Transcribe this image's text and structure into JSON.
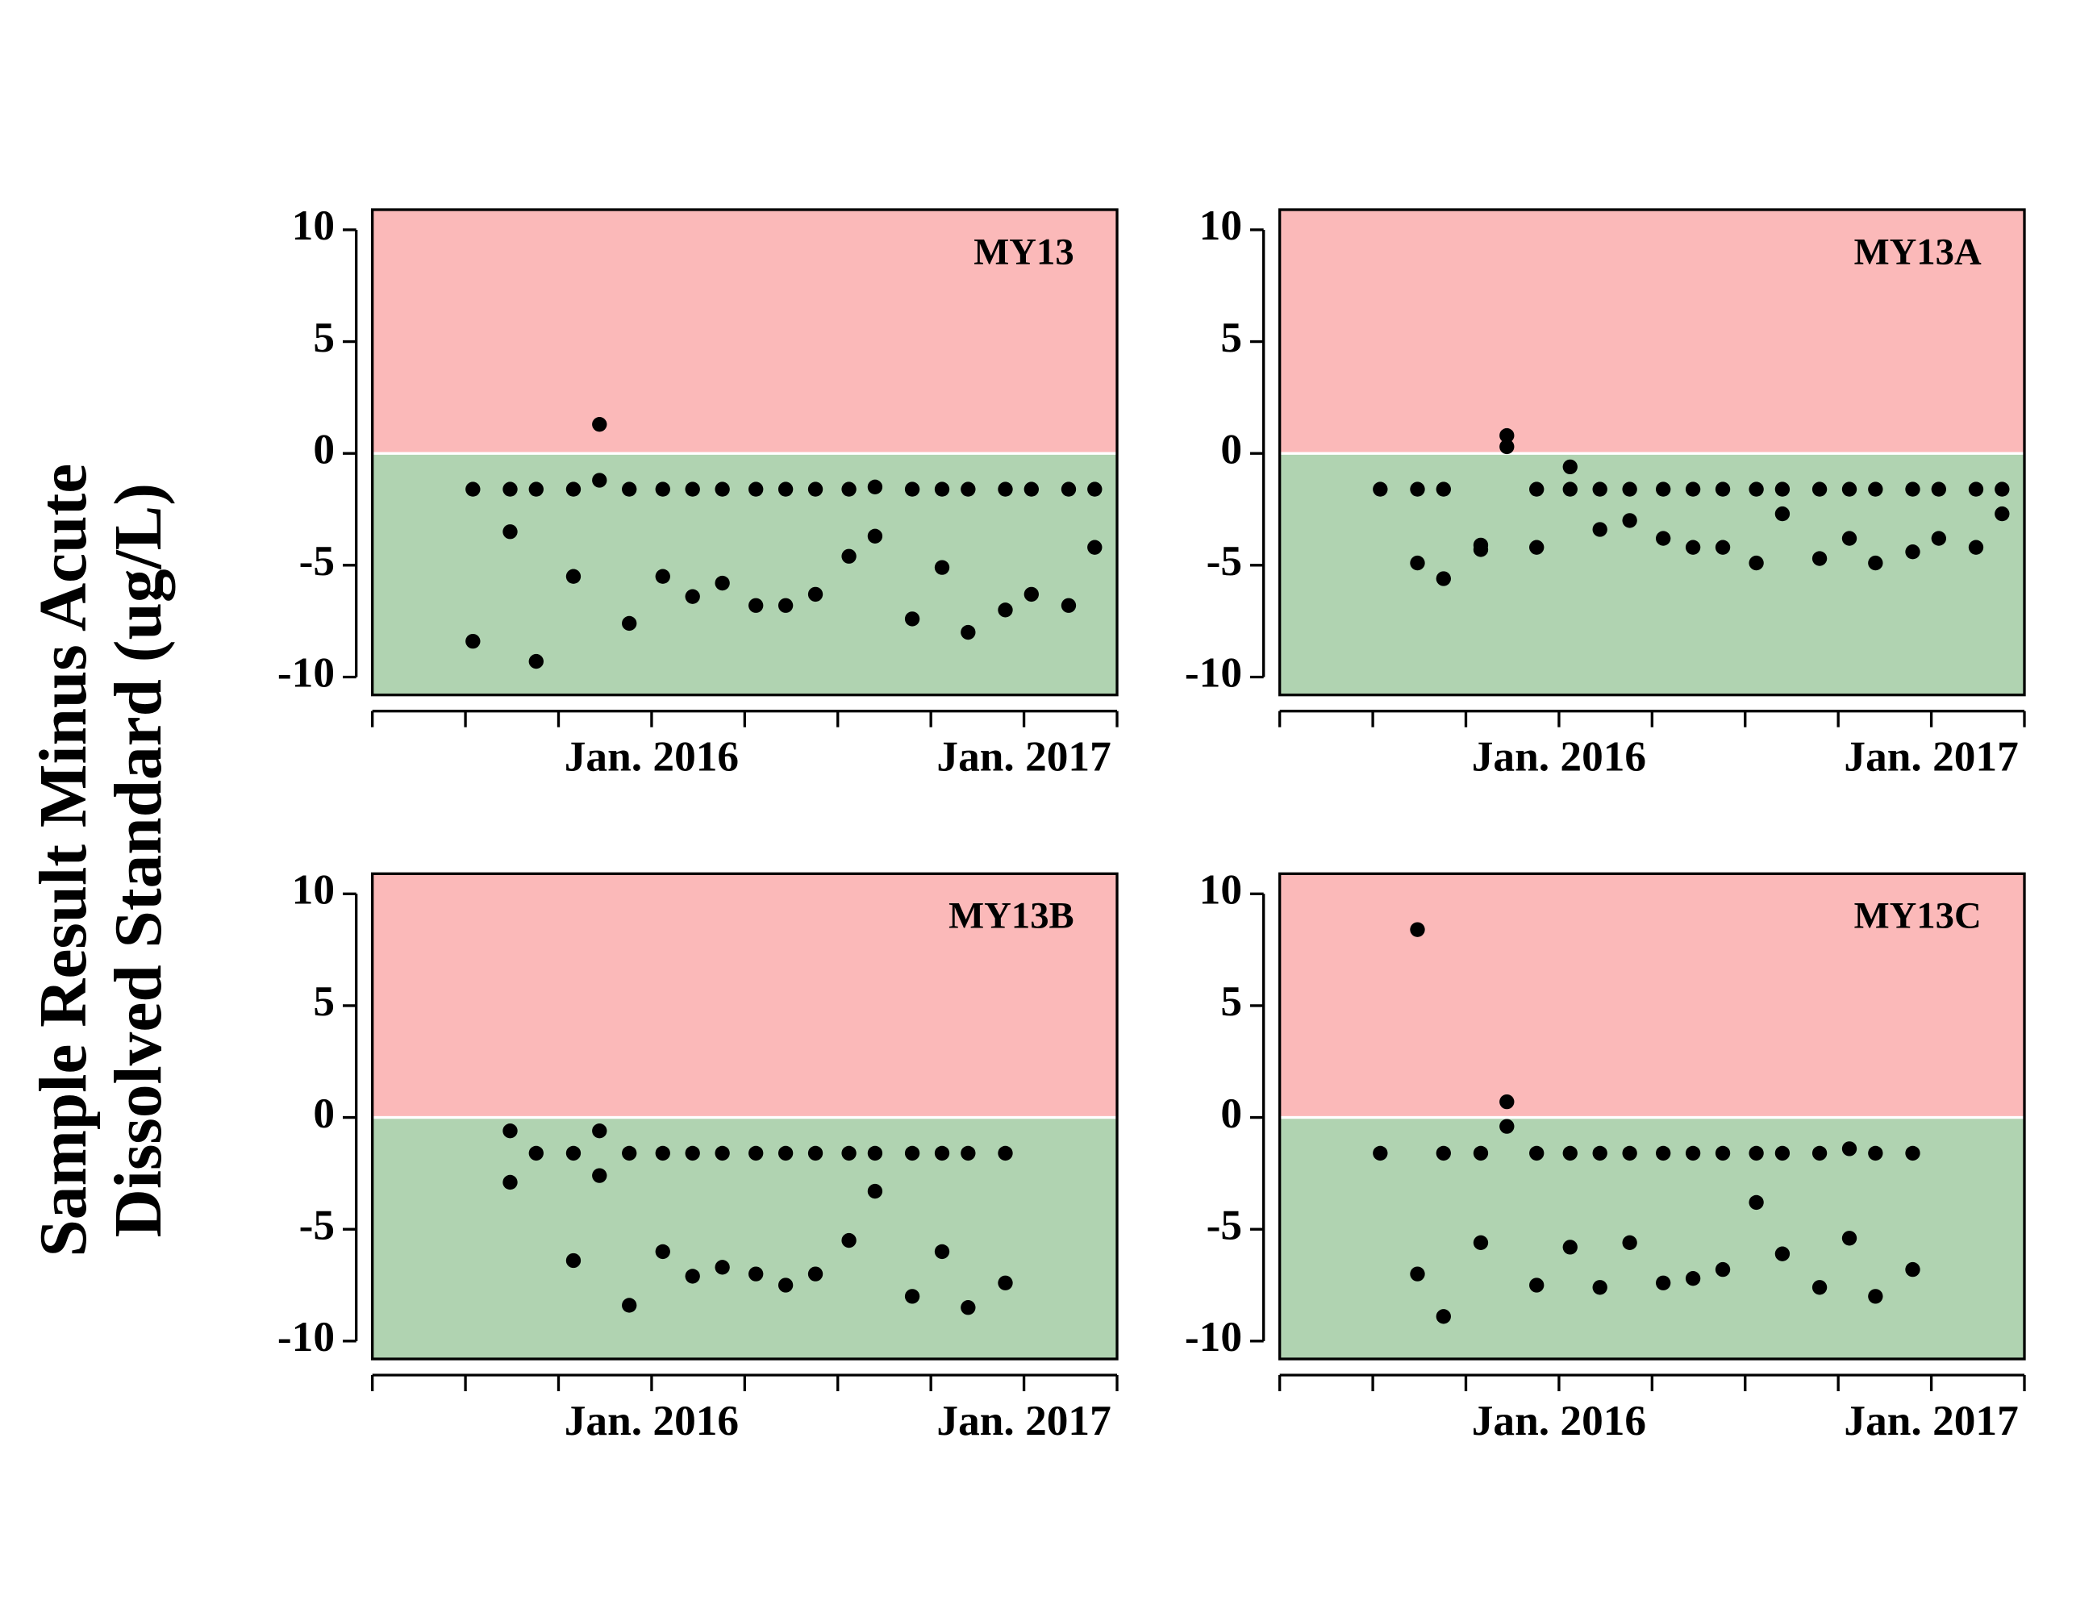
{
  "ylabel": [
    "Sample Result Minus Acute",
    "Dissolved Standard (ug/L)"
  ],
  "chart_data": [
    {
      "type": "scatter",
      "title": "MY13",
      "point_color": "#000000",
      "background": {
        "above": "#fbb9b9",
        "below": "#b0d3b1",
        "threshold": 0
      },
      "xlim": [
        2015.25,
        2017.25
      ],
      "ylim": [
        -10.8,
        10.9
      ],
      "xticks": [
        {
          "value": 2015.25,
          "label": null
        },
        {
          "value": 2015.5,
          "label": null
        },
        {
          "value": 2015.75,
          "label": null
        },
        {
          "value": 2016,
          "label": "Jan. 2016"
        },
        {
          "value": 2016.25,
          "label": null
        },
        {
          "value": 2016.5,
          "label": null
        },
        {
          "value": 2016.75,
          "label": null
        },
        {
          "value": 2017,
          "label": "Jan. 2017"
        },
        {
          "value": 2017.25,
          "label": null
        }
      ],
      "yticks": [
        -10,
        -5,
        0,
        5,
        10
      ],
      "x": [
        2015.52,
        2015.52,
        2015.62,
        2015.62,
        2015.69,
        2015.69,
        2015.79,
        2015.79,
        2015.86,
        2015.86,
        2015.94,
        2015.94,
        2016.03,
        2016.03,
        2016.11,
        2016.11,
        2016.19,
        2016.19,
        2016.28,
        2016.28,
        2016.36,
        2016.36,
        2016.44,
        2016.44,
        2016.53,
        2016.53,
        2016.6,
        2016.6,
        2016.7,
        2016.7,
        2016.78,
        2016.78,
        2016.85,
        2016.85,
        2016.95,
        2016.95,
        2017.02,
        2017.02,
        2017.12,
        2017.12,
        2017.19,
        2017.19
      ],
      "values": [
        -1.6,
        -8.4,
        -1.6,
        -3.5,
        -1.6,
        -9.3,
        -1.6,
        -5.5,
        1.3,
        -1.2,
        -1.6,
        -7.6,
        -1.6,
        -5.5,
        -1.6,
        -6.4,
        -1.6,
        -5.8,
        -1.6,
        -6.8,
        -1.6,
        -6.8,
        -1.6,
        -6.3,
        -1.6,
        -4.6,
        -1.5,
        -3.7,
        -1.6,
        -7.4,
        -1.6,
        -5.1,
        -1.6,
        -8.0,
        -1.6,
        -7.0,
        -1.6,
        -6.3,
        -1.6,
        -6.8,
        -1.6,
        -4.2
      ]
    },
    {
      "type": "scatter",
      "title": "MY13A",
      "point_color": "#000000",
      "background": {
        "above": "#fbb9b9",
        "below": "#b0d3b1",
        "threshold": 0
      },
      "xlim": [
        2015.25,
        2017.25
      ],
      "ylim": [
        -10.8,
        10.9
      ],
      "xticks": [
        {
          "value": 2015.25,
          "label": null
        },
        {
          "value": 2015.5,
          "label": null
        },
        {
          "value": 2015.75,
          "label": null
        },
        {
          "value": 2016,
          "label": "Jan. 2016"
        },
        {
          "value": 2016.25,
          "label": null
        },
        {
          "value": 2016.5,
          "label": null
        },
        {
          "value": 2016.75,
          "label": null
        },
        {
          "value": 2017,
          "label": "Jan. 2017"
        },
        {
          "value": 2017.25,
          "label": null
        }
      ],
      "yticks": [
        -10,
        -5,
        0,
        5,
        10
      ],
      "x": [
        2015.52,
        2015.62,
        2015.62,
        2015.69,
        2015.69,
        2015.79,
        2015.79,
        2015.86,
        2015.86,
        2015.94,
        2015.94,
        2016.03,
        2016.03,
        2016.11,
        2016.11,
        2016.19,
        2016.19,
        2016.28,
        2016.28,
        2016.36,
        2016.36,
        2016.44,
        2016.44,
        2016.53,
        2016.53,
        2016.6,
        2016.6,
        2016.7,
        2016.7,
        2016.78,
        2016.78,
        2016.85,
        2016.85,
        2016.95,
        2016.95,
        2017.02,
        2017.02,
        2017.12,
        2017.12,
        2017.19,
        2017.19
      ],
      "values": [
        -1.6,
        -1.6,
        -4.9,
        -1.6,
        -5.6,
        -4.1,
        -4.3,
        0.8,
        0.3,
        -1.6,
        -4.2,
        -0.6,
        -1.6,
        -1.6,
        -3.4,
        -1.6,
        -3.0,
        -1.6,
        -3.8,
        -1.6,
        -4.2,
        -1.6,
        -4.2,
        -1.6,
        -4.9,
        -1.6,
        -2.7,
        -1.6,
        -4.7,
        -1.6,
        -3.8,
        -1.6,
        -4.9,
        -1.6,
        -4.4,
        -1.6,
        -3.8,
        -1.6,
        -4.2,
        -1.6,
        -2.7
      ]
    },
    {
      "type": "scatter",
      "title": "MY13B",
      "point_color": "#000000",
      "background": {
        "above": "#fbb9b9",
        "below": "#b0d3b1",
        "threshold": 0
      },
      "xlim": [
        2015.25,
        2017.25
      ],
      "ylim": [
        -10.8,
        10.9
      ],
      "xticks": [
        {
          "value": 2015.25,
          "label": null
        },
        {
          "value": 2015.5,
          "label": null
        },
        {
          "value": 2015.75,
          "label": null
        },
        {
          "value": 2016,
          "label": "Jan. 2016"
        },
        {
          "value": 2016.25,
          "label": null
        },
        {
          "value": 2016.5,
          "label": null
        },
        {
          "value": 2016.75,
          "label": null
        },
        {
          "value": 2017,
          "label": "Jan. 2017"
        },
        {
          "value": 2017.25,
          "label": null
        }
      ],
      "yticks": [
        -10,
        -5,
        0,
        5,
        10
      ],
      "x": [
        2015.62,
        2015.62,
        2015.69,
        2015.79,
        2015.79,
        2015.86,
        2015.86,
        2015.94,
        2015.94,
        2016.03,
        2016.03,
        2016.11,
        2016.11,
        2016.19,
        2016.19,
        2016.28,
        2016.28,
        2016.36,
        2016.36,
        2016.44,
        2016.44,
        2016.53,
        2016.53,
        2016.6,
        2016.6,
        2016.7,
        2016.7,
        2016.78,
        2016.78,
        2016.85,
        2016.85,
        2016.95,
        2016.95
      ],
      "values": [
        -0.6,
        -2.9,
        -1.6,
        -1.6,
        -6.4,
        -0.6,
        -2.6,
        -1.6,
        -8.4,
        -1.6,
        -6.0,
        -1.6,
        -7.1,
        -1.6,
        -6.7,
        -1.6,
        -7.0,
        -1.6,
        -7.5,
        -1.6,
        -7.0,
        -1.6,
        -5.5,
        -1.6,
        -3.3,
        -1.6,
        -8.0,
        -1.6,
        -6.0,
        -1.6,
        -8.5,
        -1.6,
        -7.4
      ]
    },
    {
      "type": "scatter",
      "title": "MY13C",
      "point_color": "#000000",
      "background": {
        "above": "#fbb9b9",
        "below": "#b0d3b1",
        "threshold": 0
      },
      "xlim": [
        2015.25,
        2017.25
      ],
      "ylim": [
        -10.8,
        10.9
      ],
      "xticks": [
        {
          "value": 2015.25,
          "label": null
        },
        {
          "value": 2015.5,
          "label": null
        },
        {
          "value": 2015.75,
          "label": null
        },
        {
          "value": 2016,
          "label": "Jan. 2016"
        },
        {
          "value": 2016.25,
          "label": null
        },
        {
          "value": 2016.5,
          "label": null
        },
        {
          "value": 2016.75,
          "label": null
        },
        {
          "value": 2017,
          "label": "Jan. 2017"
        },
        {
          "value": 2017.25,
          "label": null
        }
      ],
      "yticks": [
        -10,
        -5,
        0,
        5,
        10
      ],
      "x": [
        2015.52,
        2015.62,
        2015.62,
        2015.69,
        2015.69,
        2015.79,
        2015.79,
        2015.86,
        2015.86,
        2015.94,
        2015.94,
        2016.03,
        2016.03,
        2016.11,
        2016.11,
        2016.19,
        2016.19,
        2016.28,
        2016.28,
        2016.36,
        2016.36,
        2016.44,
        2016.44,
        2016.53,
        2016.53,
        2016.6,
        2016.6,
        2016.7,
        2016.7,
        2016.78,
        2016.78,
        2016.85,
        2016.85,
        2016.95,
        2016.95
      ],
      "values": [
        -1.6,
        8.4,
        -7.0,
        -1.6,
        -8.9,
        -1.6,
        -5.6,
        0.7,
        -0.4,
        -1.6,
        -7.5,
        -1.6,
        -5.8,
        -1.6,
        -7.6,
        -1.6,
        -5.6,
        -1.6,
        -7.4,
        -1.6,
        -7.2,
        -1.6,
        -6.8,
        -1.6,
        -3.8,
        -1.6,
        -6.1,
        -1.6,
        -7.6,
        -1.4,
        -5.4,
        -1.6,
        -8.0,
        -1.6,
        -6.8
      ]
    }
  ]
}
